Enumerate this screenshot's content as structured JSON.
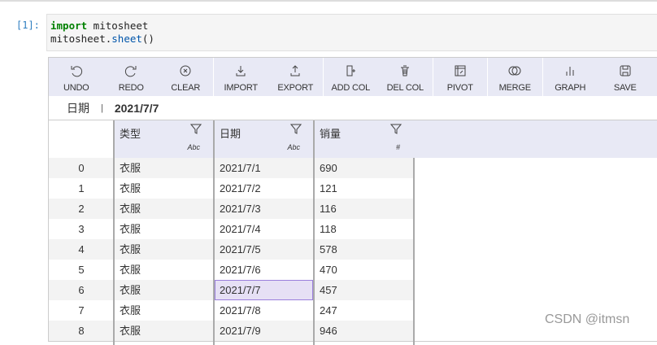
{
  "notebook": {
    "prompt": "[1]:",
    "code_line1_kw": "import",
    "code_line1_rest": " mitosheet",
    "code_line2_a": "mitosheet.",
    "code_line2_fn": "sheet",
    "code_line2_b": "()"
  },
  "toolbar": [
    {
      "label": "UNDO",
      "icon": "undo-icon"
    },
    {
      "label": "REDO",
      "icon": "redo-icon"
    },
    {
      "label": "CLEAR",
      "icon": "clear-icon"
    },
    {
      "label": "IMPORT",
      "icon": "import-icon"
    },
    {
      "label": "EXPORT",
      "icon": "export-icon"
    },
    {
      "label": "ADD COL",
      "icon": "add-column-icon"
    },
    {
      "label": "DEL COL",
      "icon": "trash-icon"
    },
    {
      "label": "PIVOT",
      "icon": "pivot-icon"
    },
    {
      "label": "MERGE",
      "icon": "merge-icon"
    },
    {
      "label": "GRAPH",
      "icon": "graph-icon"
    },
    {
      "label": "SAVE",
      "icon": "save-icon"
    }
  ],
  "formula_bar": {
    "column": "日期",
    "value": "2021/7/7"
  },
  "columns": [
    {
      "name": "类型",
      "type": "Abc"
    },
    {
      "name": "日期",
      "type": "Abc"
    },
    {
      "name": "销量",
      "type": "#"
    }
  ],
  "rows": [
    {
      "index": "0",
      "cells": [
        "衣服",
        "2021/7/1",
        "690"
      ]
    },
    {
      "index": "1",
      "cells": [
        "衣服",
        "2021/7/2",
        "121"
      ]
    },
    {
      "index": "2",
      "cells": [
        "衣服",
        "2021/7/3",
        "116"
      ]
    },
    {
      "index": "3",
      "cells": [
        "衣服",
        "2021/7/4",
        "118"
      ]
    },
    {
      "index": "4",
      "cells": [
        "衣服",
        "2021/7/5",
        "578"
      ]
    },
    {
      "index": "5",
      "cells": [
        "衣服",
        "2021/7/6",
        "470"
      ]
    },
    {
      "index": "6",
      "cells": [
        "衣服",
        "2021/7/7",
        "457"
      ]
    },
    {
      "index": "7",
      "cells": [
        "衣服",
        "2021/7/8",
        "247"
      ]
    },
    {
      "index": "8",
      "cells": [
        "衣服",
        "2021/7/9",
        "946"
      ]
    }
  ],
  "selected": {
    "row": 6,
    "col": 1
  },
  "colors": {
    "accent": "#9a7fdc",
    "toolbar_bg": "#e8e9f5",
    "selected_bg": "#e6e0f5"
  },
  "watermark": "CSDN @itmsn"
}
